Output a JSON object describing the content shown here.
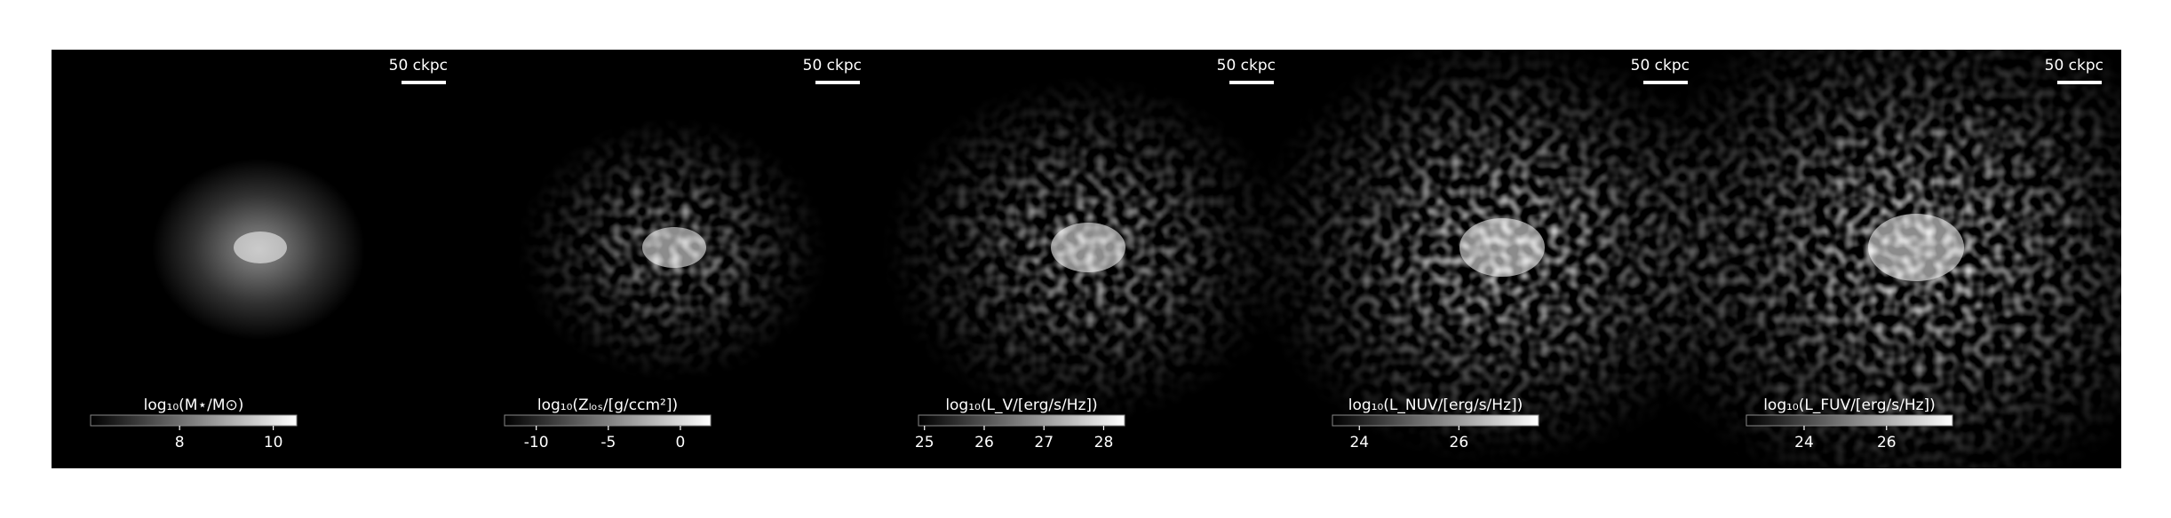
{
  "panels": [
    {
      "scale_bar": "50 ckpc",
      "colorbar": {
        "label": "log₁₀(M⋆/M⊙)",
        "lim": [
          6.1,
          10.5
        ],
        "ticks": [
          8,
          10
        ]
      }
    },
    {
      "scale_bar": "50 ckpc",
      "colorbar": {
        "label": "log₁₀(Zₗₒₛ/[g/ccm²])",
        "lim": [
          -12.2,
          2.1
        ],
        "ticks": [
          -10,
          -5,
          0
        ]
      }
    },
    {
      "scale_bar": "50 ckpc",
      "colorbar": {
        "label": "log₁₀(L_V/[erg/s/Hz])",
        "lim": [
          24.9,
          28.35
        ],
        "ticks": [
          25,
          26,
          27,
          28
        ]
      }
    },
    {
      "scale_bar": "50 ckpc",
      "colorbar": {
        "label": "log₁₀(L_NUV/[erg/s/Hz])",
        "lim": [
          23.46,
          27.6
        ],
        "ticks": [
          24,
          26
        ]
      }
    },
    {
      "scale_bar": "50 ckpc",
      "colorbar": {
        "label": "log₁₀(L_FUV/[erg/s/Hz])",
        "lim": [
          22.6,
          27.6
        ],
        "ticks": [
          24,
          26
        ]
      }
    }
  ]
}
